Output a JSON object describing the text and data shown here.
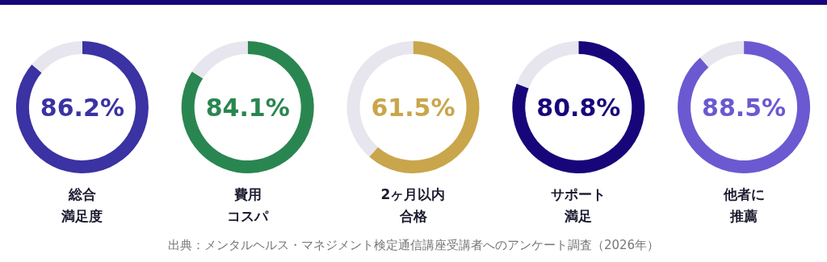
{
  "chart_data": [
    {
      "type": "donut",
      "title": "総合満足度",
      "categories": [
        null,
        null
      ],
      "values": [
        86.2,
        13.8
      ],
      "colors": [
        "#3b32a3",
        "#e7e6ee"
      ],
      "value_labels": [
        "86.2%",
        null
      ],
      "annotations": [
        "出典：メンタルヘルス・マネジメント検定通信講座受講者へのアンケート調査（2026年）"
      ]
    },
    {
      "type": "donut",
      "title": "費用コスパ",
      "categories": [
        null,
        null
      ],
      "values": [
        84.1,
        15.9
      ],
      "colors": [
        "#2a8650",
        "#e7e6ee"
      ],
      "value_labels": [
        "84.1%",
        null
      ]
    },
    {
      "type": "donut",
      "title": "2ヶ月以内合格",
      "categories": [
        null,
        null
      ],
      "values": [
        61.5,
        38.5
      ],
      "colors": [
        "#c9a64b",
        "#e7e6ee"
      ],
      "value_labels": [
        "61.5%",
        null
      ]
    },
    {
      "type": "donut",
      "title": "サポート満足",
      "categories": [
        null,
        null
      ],
      "values": [
        80.8,
        19.2
      ],
      "colors": [
        "#17067a",
        "#e7e6ee"
      ],
      "value_labels": [
        "80.8%",
        null
      ]
    },
    {
      "type": "donut",
      "title": "他者に推薦",
      "categories": [
        null,
        null
      ],
      "values": [
        88.5,
        11.5
      ],
      "colors": [
        "#6a59d1",
        "#e7e6ee"
      ],
      "value_labels": [
        "88.5%",
        null
      ]
    }
  ]
}
